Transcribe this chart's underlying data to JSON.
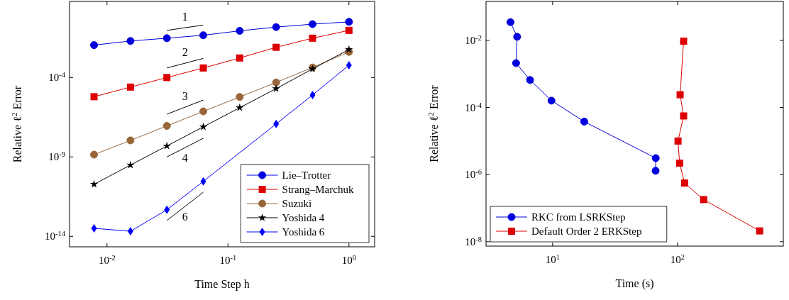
{
  "chart_data": [
    {
      "type": "line",
      "xlabel": "Time Step h",
      "ylabel": "Relative ℓ$^{2}$ Error",
      "log": "xy",
      "xlim": [
        0.0049,
        1.63
      ],
      "ylim": [
        2.2e-15,
        6.2
      ],
      "xticks": [
        {
          "value": 0.01,
          "label": "10$^{-2}$"
        },
        {
          "value": 0.1,
          "label": "10$^{-1}$"
        },
        {
          "value": 1,
          "label": "10$^{0}$"
        }
      ],
      "yticks": [
        {
          "value": 1e-14,
          "label": "10$^{-14}$"
        },
        {
          "value": 1e-09,
          "label": "10$^{-9}$"
        },
        {
          "value": 0.0001,
          "label": "10$^{-4}$"
        }
      ],
      "x": [
        0.0078125,
        0.015625,
        0.03125,
        0.0625,
        0.125,
        0.25,
        0.5,
        1
      ],
      "legend": "bottom right",
      "line_style": "solid",
      "series": [
        {
          "name": "Lie–Trotter",
          "color": "#0000dd",
          "marker": "circle",
          "values": [
            0.011,
            0.02,
            0.03,
            0.046,
            0.087,
            0.15,
            0.23,
            0.32
          ]
        },
        {
          "name": "Strang–Marchuk",
          "color": "#dd0000",
          "marker": "square",
          "values": [
            6.2e-06,
            2.5e-05,
            0.0001,
            0.0004,
            0.0017,
            0.008,
            0.03,
            0.093
          ]
        },
        {
          "name": "Suzuki",
          "color": "#99663a",
          "marker": "circle",
          "values": [
            1.4e-09,
            1.1e-08,
            9e-08,
            7.4e-07,
            6e-06,
            4.9e-05,
            0.00043,
            0.0041
          ]
        },
        {
          "name": "Yoshida 4",
          "color": "#000000",
          "marker": "star",
          "values": [
            1.9e-11,
            3.1e-10,
            4.9e-09,
            7.9e-08,
            1.26e-06,
            2e-05,
            0.00035,
            0.0058
          ]
        },
        {
          "name": "Yoshida 6",
          "color": "#0000ff",
          "marker": "diamond",
          "values": [
            3.2e-14,
            2.1e-14,
            4.7e-13,
            2.9e-11,
            null,
            1.2e-07,
            7.9e-06,
            0.0006
          ]
        },
        {
          "color": "#000000",
          "marker": "none",
          "x": [
            0.03125,
            0.0625
          ],
          "values": [
            0.093,
            0.2
          ]
        },
        {
          "color": "#000000",
          "marker": "none",
          "x": [
            0.03125,
            0.0625
          ],
          "values": [
            0.0004,
            0.0016
          ]
        },
        {
          "color": "#000000",
          "marker": "none",
          "x": [
            0.03125,
            0.0625
          ],
          "values": [
            4.9e-07,
            3.8e-06
          ]
        },
        {
          "color": "#000000",
          "marker": "none",
          "x": [
            0.03125,
            0.0625
          ],
          "values": [
            1e-09,
            1.5e-08
          ]
        },
        {
          "color": "#000000",
          "marker": "none",
          "x": [
            0.03125,
            0.0625
          ],
          "values": [
            1e-13,
            6e-12
          ]
        }
      ],
      "annotations": [
        "1",
        "2",
        "3",
        "4",
        "6"
      ]
    },
    {
      "type": "line",
      "xlabel": "Time (s)",
      "ylabel": "Relative ℓ$^{2}$ Error",
      "log": "xy",
      "xlim": [
        2.93,
        704
      ],
      "ylim": [
        7.4e-09,
        0.145
      ],
      "xticks": [
        {
          "value": 10,
          "label": "10$^{1}$"
        },
        {
          "value": 100,
          "label": "10$^{2}$"
        }
      ],
      "yticks": [
        {
          "value": 1e-08,
          "label": "10$^{-8}$"
        },
        {
          "value": 1e-06,
          "label": "10$^{-6}$"
        },
        {
          "value": 0.0001,
          "label": "10$^{-4}$"
        },
        {
          "value": 0.01,
          "label": "10$^{-2}$"
        }
      ],
      "legend": "bottom left",
      "line_style": "solid",
      "series": [
        {
          "name": "RKC from LSRKStep",
          "color": "#0000dd",
          "marker": "circle",
          "x": [
            4.6,
            5.2,
            5.1,
            6.6,
            9.8,
            17.9,
            67,
            66.8
          ],
          "values": [
            0.035,
            0.0128,
            0.0021,
            0.00066,
            0.00016,
            3.8e-05,
            3.1e-06,
            1.3e-06
          ]
        },
        {
          "name": "Default Order 2 ERKStep",
          "color": "#dd0000",
          "marker": "square",
          "x": [
            112,
            105,
            112,
            101,
            104,
            114,
            162,
            455
          ],
          "values": [
            0.0095,
            0.00024,
            5.6e-05,
            1e-05,
            2.2e-06,
            5.6e-07,
            1.8e-07,
            2.1e-08
          ]
        }
      ]
    }
  ]
}
